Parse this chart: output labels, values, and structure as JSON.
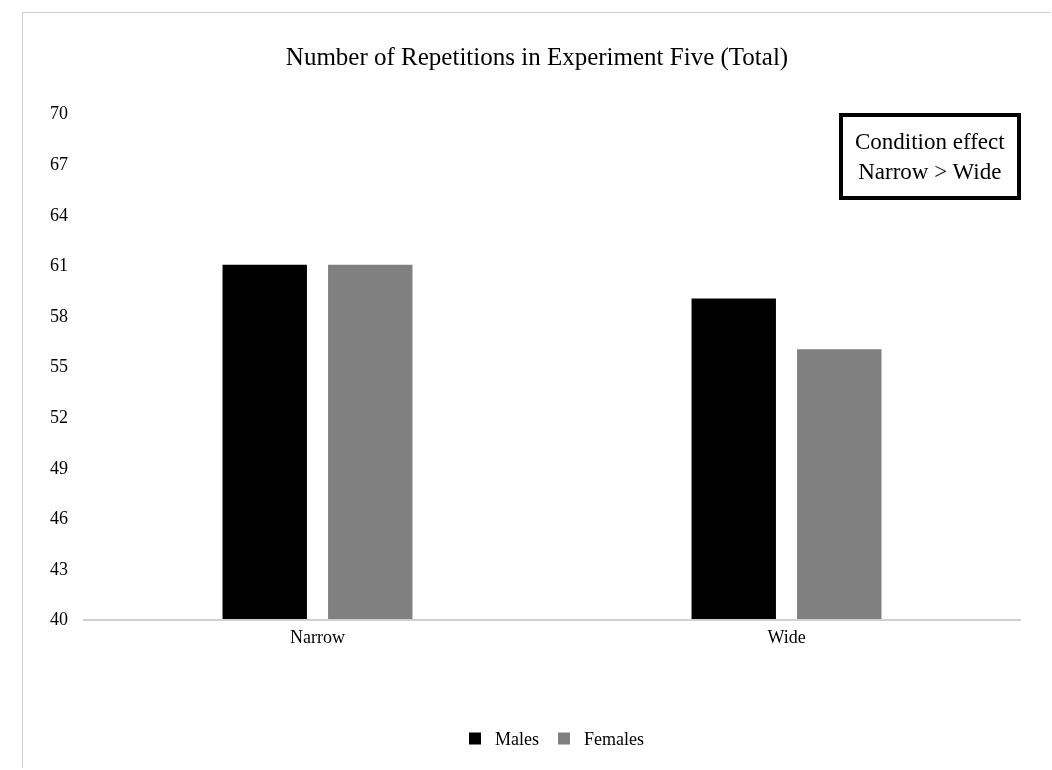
{
  "chart_data": {
    "type": "bar",
    "title": "Number of Repetitions in Experiment Five (Total)",
    "categories": [
      "Narrow",
      "Wide"
    ],
    "series": [
      {
        "name": "Males",
        "color": "#000000",
        "values": [
          61,
          59
        ]
      },
      {
        "name": "Females",
        "color": "#808080",
        "values": [
          61,
          56
        ]
      }
    ],
    "ylim": [
      40,
      70
    ],
    "yticks": [
      40,
      43,
      46,
      49,
      52,
      55,
      58,
      61,
      64,
      67,
      70
    ],
    "grid": false,
    "legend": "bottom",
    "annotations": [
      "Condition effect\nNarrow > Wide"
    ]
  }
}
